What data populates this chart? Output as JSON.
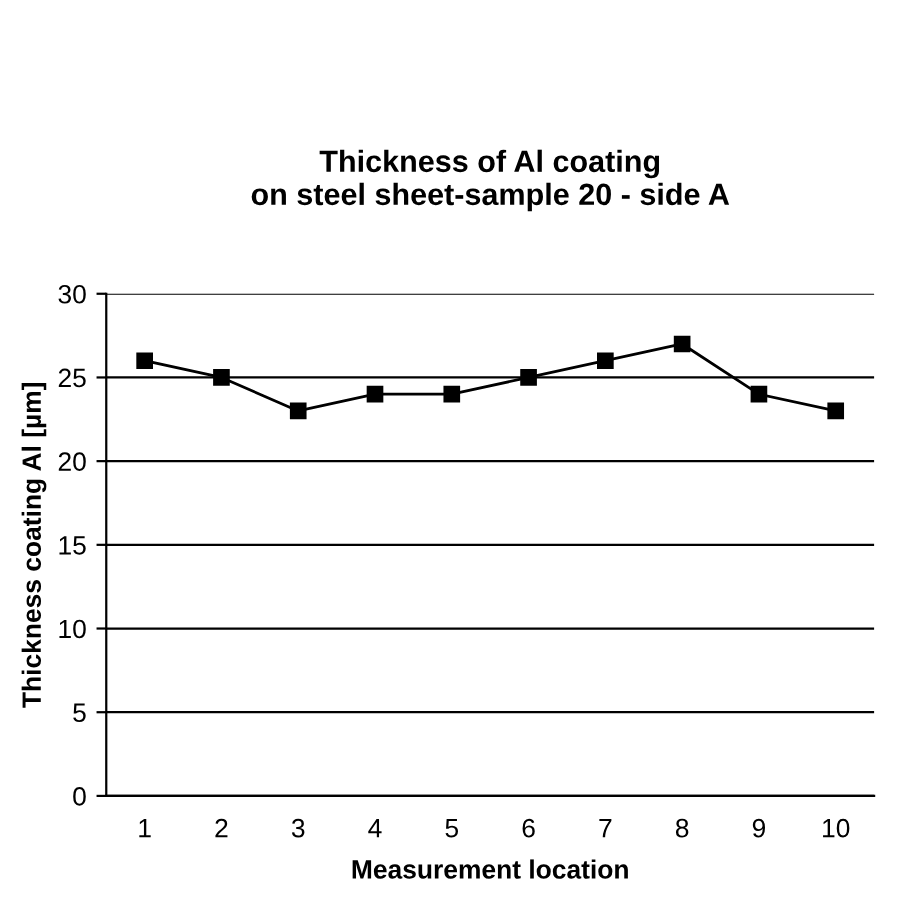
{
  "chart_data": {
    "type": "line",
    "title": "Thickness of Al coating\non steel sheet-sample 20 - side A",
    "xlabel": "Measurement location",
    "ylabel": "Thickness coating Al [µm]",
    "categories": [
      "1",
      "2",
      "3",
      "4",
      "5",
      "6",
      "7",
      "8",
      "9",
      "10"
    ],
    "series": [
      {
        "color": "#000000",
        "values": [
          26,
          25,
          23,
          24,
          24,
          25,
          26,
          27,
          24,
          23
        ]
      }
    ],
    "ylim": [
      0,
      30
    ],
    "yticks": [
      0,
      5,
      10,
      15,
      20,
      25,
      30
    ],
    "grid": "y",
    "marker": "square",
    "line_style": "solid"
  }
}
